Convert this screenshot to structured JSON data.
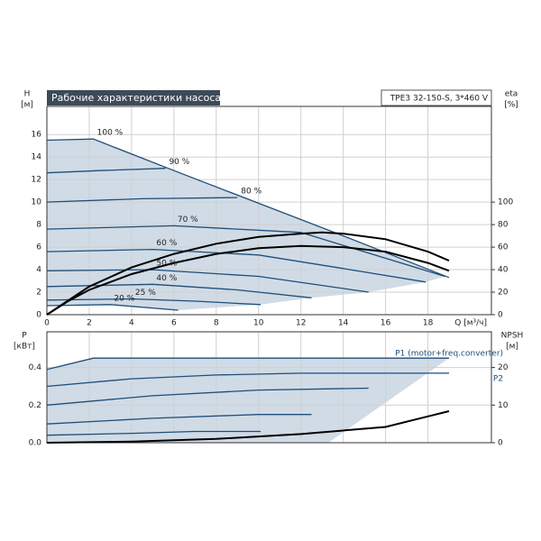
{
  "chart_data": [
    {
      "type": "line",
      "title": "Рабочие характеристики насоса",
      "subtitle": "TPE3 32-150-S, 3*460 V",
      "y_label": "H",
      "y_unit": "[м]",
      "y2_label": "eta",
      "y2_unit": "[%]",
      "x_label": "Q [м³/ч]",
      "xlim": [
        0,
        21
      ],
      "xticks": [
        0,
        2,
        4,
        6,
        8,
        10,
        12,
        14,
        16,
        18
      ],
      "ylim": [
        0,
        18.5
      ],
      "yticks": [
        0,
        2,
        4,
        6,
        8,
        10,
        12,
        14,
        16
      ],
      "y2lim": [
        0,
        185
      ],
      "y2ticks": [
        0,
        20,
        40,
        60,
        80,
        100
      ],
      "grid": true,
      "area_color": "#c8d5e2",
      "series": [
        {
          "name": "100 %",
          "color": "#1f4e79",
          "x": [
            0,
            2.2,
            6,
            10,
            14,
            19
          ],
          "values": [
            15.5,
            15.6,
            12.8,
            9.9,
            7.0,
            3.3
          ]
        },
        {
          "name": "90 %",
          "color": "#1f4e79",
          "x": [
            0,
            2.5,
            5.6
          ],
          "values": [
            12.6,
            12.8,
            13.0
          ]
        },
        {
          "name": "80 %",
          "color": "#1f4e79",
          "x": [
            0,
            4.5,
            9
          ],
          "values": [
            10.0,
            10.3,
            10.4
          ]
        },
        {
          "name": "70 %",
          "color": "#1f4e79",
          "x": [
            0,
            6,
            12,
            18.8
          ],
          "values": [
            7.6,
            7.9,
            7.3,
            3.4
          ]
        },
        {
          "name": "60 %",
          "color": "#1f4e79",
          "x": [
            0,
            5,
            10,
            14,
            17.9
          ],
          "values": [
            5.6,
            5.8,
            5.3,
            4.1,
            2.9
          ]
        },
        {
          "name": "50 %",
          "color": "#1f4e79",
          "x": [
            0,
            5,
            10,
            15.2
          ],
          "values": [
            3.9,
            4.0,
            3.4,
            2.0
          ]
        },
        {
          "name": "40 %",
          "color": "#1f4e79",
          "x": [
            0,
            5,
            9,
            12.5
          ],
          "values": [
            2.5,
            2.7,
            2.2,
            1.5
          ]
        },
        {
          "name": "25 %",
          "color": "#1f4e79",
          "x": [
            0,
            4,
            7,
            10.1
          ],
          "values": [
            1.3,
            1.4,
            1.2,
            0.9
          ]
        },
        {
          "name": "20 %",
          "color": "#1f4e79",
          "x": [
            0,
            3,
            6.2
          ],
          "values": [
            0.8,
            0.9,
            0.4
          ]
        },
        {
          "color": "#000000",
          "axis": "y2",
          "x": [
            0,
            1,
            2,
            4,
            6,
            8,
            10,
            12,
            14,
            16,
            18,
            19
          ],
          "values": [
            0,
            12,
            22,
            36,
            46,
            54,
            59,
            61,
            60,
            56,
            46,
            39
          ]
        },
        {
          "color": "#000000",
          "axis": "y2",
          "x": [
            0,
            2,
            4,
            6,
            8,
            10,
            12,
            13,
            14,
            16,
            18,
            19
          ],
          "values": [
            0,
            25,
            42,
            54,
            63,
            69,
            72,
            73,
            72,
            67,
            56,
            48
          ]
        }
      ]
    },
    {
      "type": "line",
      "y_label": "P",
      "y_unit": "[кВт]",
      "y2_label": "NPSH",
      "y2_unit": "[м]",
      "xlim": [
        0,
        21
      ],
      "xticks": [
        0,
        2,
        4,
        6,
        8,
        10,
        12,
        14,
        16,
        18
      ],
      "ylim": [
        0,
        0.59
      ],
      "yticks": [
        {
          "value": 0,
          "label": "0.0"
        },
        0.2,
        0.4
      ],
      "y2lim": [
        0,
        29.5
      ],
      "y2ticks": [
        0,
        10,
        20
      ],
      "grid": true,
      "area_color": "#c8d5e2",
      "series": [
        {
          "name": "P1 (motor+freq.converter)",
          "color": "#1f4e79",
          "x": [
            0,
            2.2,
            6,
            10,
            14,
            19
          ],
          "values": [
            0.39,
            0.45,
            0.45,
            0.45,
            0.45,
            0.45
          ]
        },
        {
          "name": "P2",
          "color": "#1f4e79",
          "x": [
            0,
            4,
            8,
            12,
            16,
            19
          ],
          "values": [
            0.3,
            0.34,
            0.36,
            0.37,
            0.37,
            0.37
          ]
        },
        {
          "color": "#1f4e79",
          "x": [
            0,
            5,
            10,
            15.2
          ],
          "values": [
            0.2,
            0.25,
            0.28,
            0.29
          ]
        },
        {
          "color": "#1f4e79",
          "x": [
            0,
            5,
            10,
            12.5
          ],
          "values": [
            0.1,
            0.13,
            0.15,
            0.15
          ]
        },
        {
          "color": "#1f4e79",
          "x": [
            0,
            4,
            7,
            10.1
          ],
          "values": [
            0.04,
            0.05,
            0.06,
            0.06
          ]
        },
        {
          "color": "#000000",
          "axis": "y2",
          "x": [
            0,
            4,
            8,
            12,
            16,
            18,
            19
          ],
          "values": [
            0,
            0.3,
            1,
            2.3,
            4.2,
            7,
            8.4
          ]
        }
      ]
    }
  ]
}
